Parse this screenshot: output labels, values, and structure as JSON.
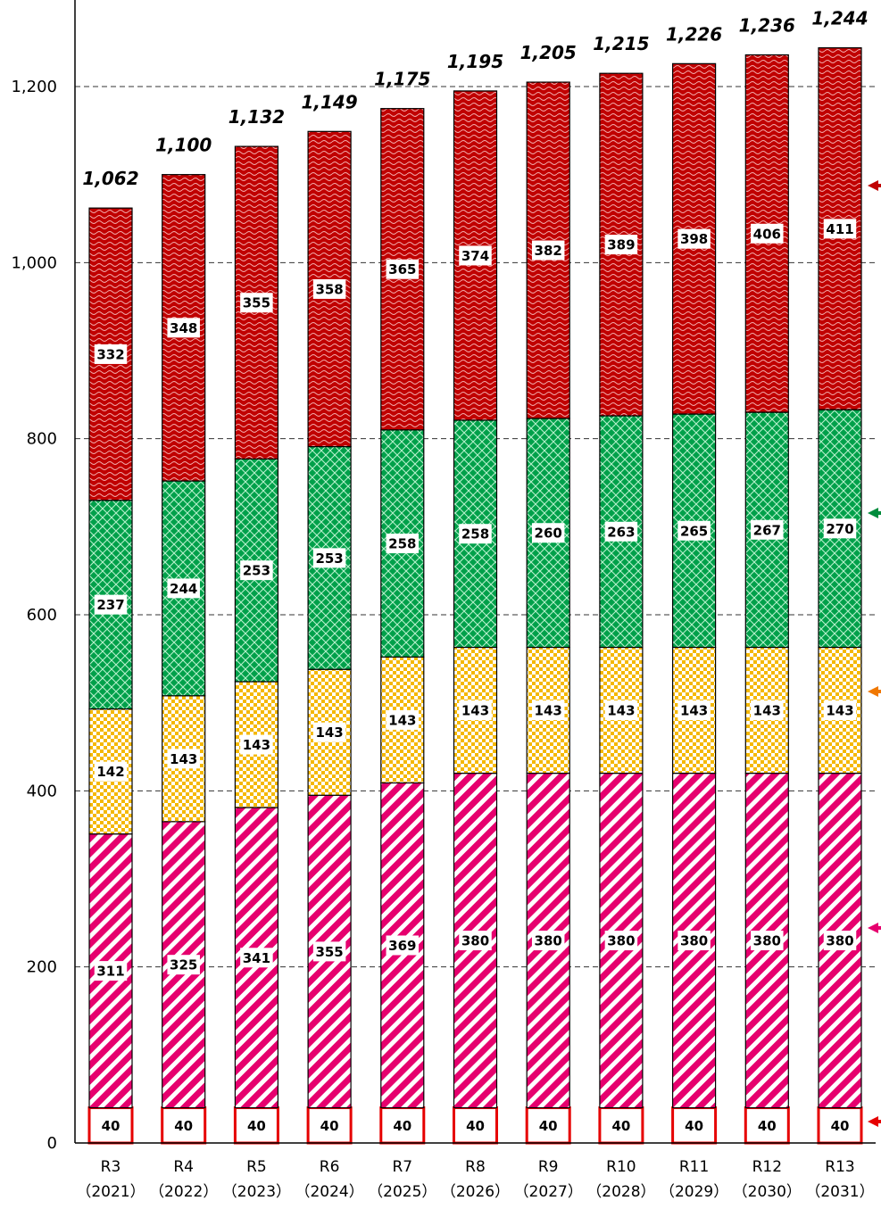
{
  "chart_data": {
    "type": "bar",
    "stacked": true,
    "categories": [
      "R3",
      "R4",
      "R5",
      "R6",
      "R7",
      "R8",
      "R9",
      "R10",
      "R11",
      "R12",
      "R13"
    ],
    "category_years": [
      "（2021）",
      "（2022）",
      "（2023）",
      "（2024）",
      "（2025）",
      "（2026）",
      "（2027）",
      "（2028）",
      "（2029）",
      "（2030）",
      "（2031）"
    ],
    "series": [
      {
        "values": [
          40,
          40,
          40,
          40,
          40,
          40,
          40,
          40,
          40,
          40,
          40
        ],
        "color": "#e60000"
      },
      {
        "values": [
          311,
          325,
          341,
          355,
          369,
          380,
          380,
          380,
          380,
          380,
          380
        ],
        "color": "#e6006e"
      },
      {
        "values": [
          142,
          143,
          143,
          143,
          143,
          143,
          143,
          143,
          143,
          143,
          143
        ],
        "color": "#ffc000"
      },
      {
        "values": [
          237,
          244,
          253,
          253,
          258,
          258,
          260,
          263,
          265,
          267,
          270
        ],
        "color": "#00a04a"
      },
      {
        "values": [
          332,
          348,
          355,
          358,
          365,
          374,
          382,
          389,
          398,
          406,
          411
        ],
        "color": "#c00000"
      }
    ],
    "totals": [
      "1,062",
      "1,100",
      "1,132",
      "1,149",
      "1,175",
      "1,195",
      "1,205",
      "1,215",
      "1,226",
      "1,236",
      "1,244"
    ],
    "yticks": [
      "0",
      "200",
      "400",
      "600",
      "800",
      "1,000",
      "1,200"
    ],
    "ylim": [
      0,
      1300
    ],
    "grid": true,
    "legend_arrow_colors": [
      "#e60000",
      "#e6006e",
      "#f07800",
      "#008c3c",
      "#c00000"
    ]
  }
}
